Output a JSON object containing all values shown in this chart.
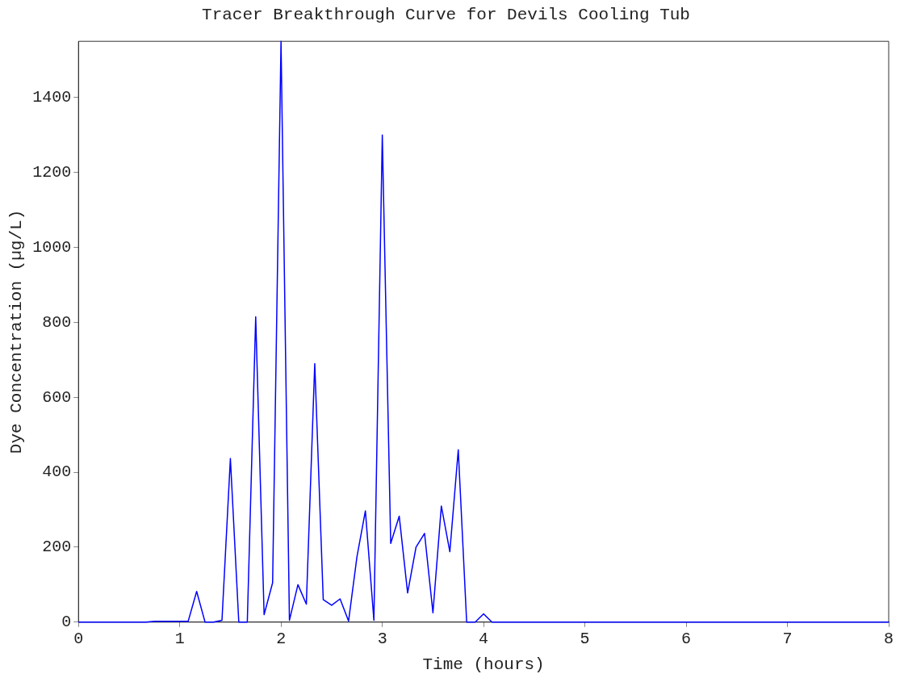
{
  "chart_data": {
    "type": "line",
    "title": "Tracer Breakthrough Curve for Devils Cooling Tub",
    "xlabel": "Time (hours)",
    "ylabel": "Dye Concentration (µg/L)",
    "x": [
      0,
      0.667,
      0.75,
      1.0,
      1.083,
      1.167,
      1.25,
      1.333,
      1.417,
      1.5,
      1.583,
      1.667,
      1.75,
      1.833,
      1.917,
      2.0,
      2.083,
      2.167,
      2.25,
      2.333,
      2.417,
      2.5,
      2.583,
      2.667,
      2.75,
      2.833,
      2.917,
      3.0,
      3.083,
      3.167,
      3.25,
      3.333,
      3.417,
      3.5,
      3.583,
      3.667,
      3.75,
      3.833,
      3.917,
      4.0,
      4.083,
      5,
      6,
      7,
      8
    ],
    "series": [
      {
        "color": "#0000ff",
        "values": [
          0,
          0,
          2,
          2,
          2,
          82,
          0,
          0,
          5,
          437,
          0,
          0,
          815,
          20,
          105,
          1550,
          5,
          100,
          48,
          690,
          60,
          45,
          62,
          3,
          175,
          297,
          5,
          1300,
          210,
          283,
          78,
          200,
          237,
          25,
          310,
          188,
          460,
          0,
          0,
          22,
          0,
          0,
          0,
          0,
          0
        ]
      }
    ],
    "xlim": [
      0,
      8
    ],
    "xticks": [
      0,
      1,
      2,
      3,
      4,
      5,
      6,
      7,
      8
    ],
    "ylim": [
      0,
      1550
    ],
    "yticks": [
      0,
      200,
      400,
      600,
      800,
      1000,
      1200,
      1400
    ],
    "grid": false,
    "legend": false,
    "marker": "none",
    "line_style": "solid"
  }
}
